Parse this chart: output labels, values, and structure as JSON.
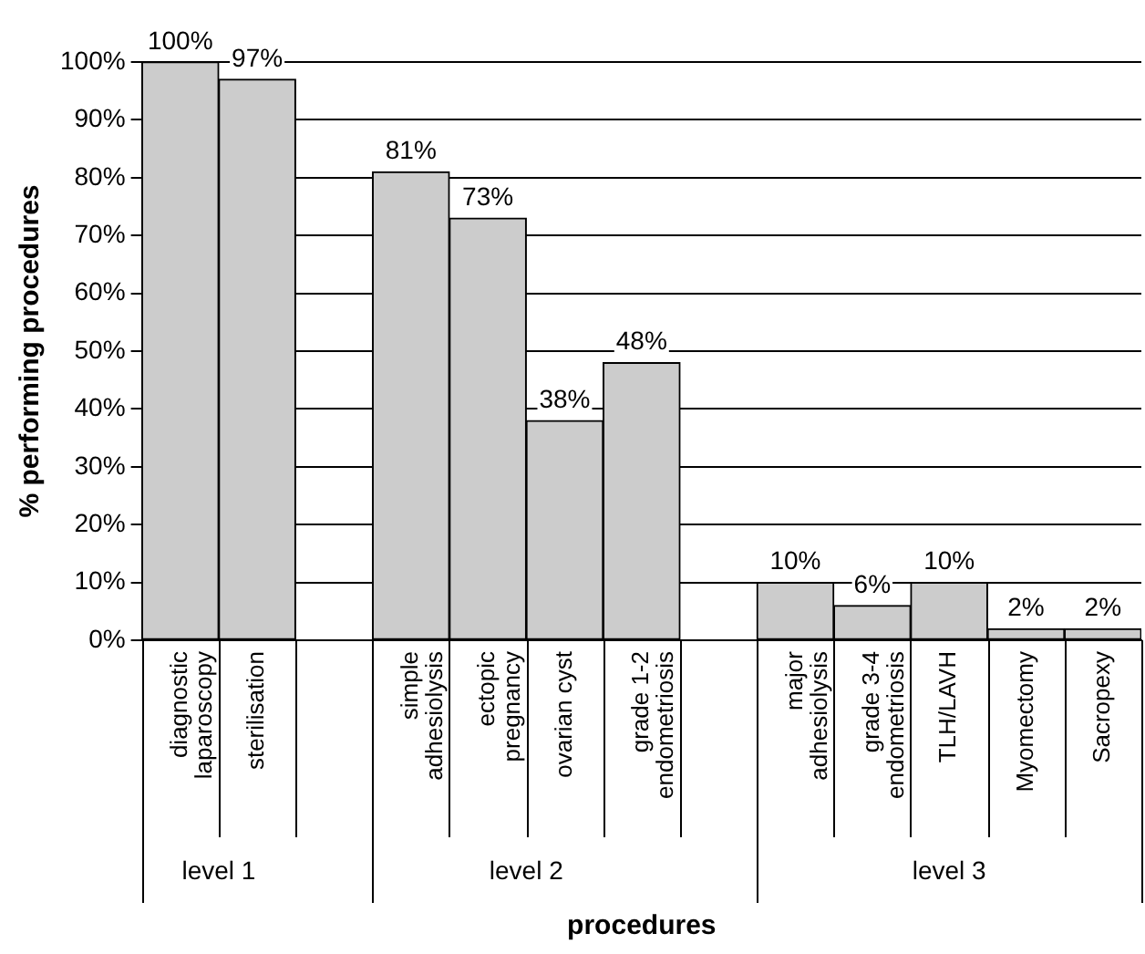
{
  "chart_data": {
    "type": "bar",
    "xlabel": "procedures",
    "ylabel": "% performing procedures",
    "categories": [
      "diagnostic laparoscopy",
      "sterilisation",
      null,
      "simple adhesiolysis",
      "ectopic pregnancy",
      "ovarian cyst",
      "grade 1-2 endometriosis",
      null,
      "major adhesiolysis",
      "grade 3-4 endometriosis",
      "TLH/LAVH",
      "Myomectomy",
      "Sacropexy"
    ],
    "values": [
      100,
      97,
      null,
      81,
      73,
      38,
      48,
      null,
      10,
      6,
      10,
      2,
      2
    ],
    "value_labels": [
      "100%",
      "97%",
      null,
      "81%",
      "73%",
      "38%",
      "48%",
      null,
      "10%",
      "6%",
      "10%",
      "2%",
      "2%"
    ],
    "color": "#cccccc",
    "ylim": [
      0,
      100
    ],
    "yticks": [
      {
        "value": 0,
        "label": "0%"
      },
      {
        "value": 10,
        "label": "10%"
      },
      {
        "value": 20,
        "label": "20%"
      },
      {
        "value": 30,
        "label": "30%"
      },
      {
        "value": 40,
        "label": "40%"
      },
      {
        "value": 50,
        "label": "50%"
      },
      {
        "value": 60,
        "label": "60%"
      },
      {
        "value": 70,
        "label": "70%"
      },
      {
        "value": 80,
        "label": "80%"
      },
      {
        "value": 90,
        "label": "90%"
      },
      {
        "value": 100,
        "label": "100%"
      }
    ],
    "grid": "y",
    "legend": false,
    "annotations": [
      "level 1",
      "level 2",
      "level 3"
    ]
  }
}
